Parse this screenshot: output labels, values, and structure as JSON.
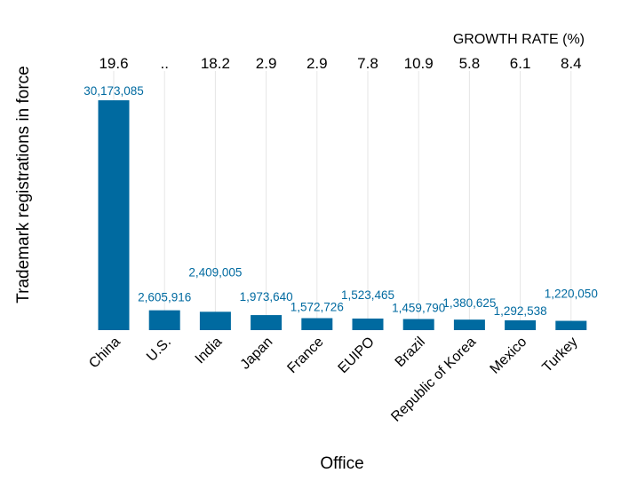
{
  "chart_data": {
    "type": "bar",
    "xlabel": "Office",
    "ylabel": "Trademark registrations in force",
    "growth_title": "GROWTH RATE (%)",
    "categories": [
      "China",
      "U.S.",
      "India",
      "Japan",
      "France",
      "EUIPO",
      "Brazil",
      "Republic of Korea",
      "Mexico",
      "Turkey"
    ],
    "values": [
      30173085,
      2605916,
      2409005,
      1973640,
      1572726,
      1523465,
      1459790,
      1380625,
      1292538,
      1220050
    ],
    "value_labels": [
      "30,173,085",
      "2,605,916",
      "2,409,005",
      "1,973,640",
      "1,572,726",
      "1,523,465",
      "1,459,790",
      "1,380,625",
      "1,292,538",
      "1,220,050"
    ],
    "growth_rates": [
      "19.6",
      "..",
      "18.2",
      "2.9",
      "2.9",
      "7.8",
      "10.9",
      "5.8",
      "6.1",
      "8.4"
    ],
    "ylim": [
      0,
      30173085
    ],
    "grid": "vertical",
    "bar_color": "#006aa0",
    "label_color": "#006aa0"
  }
}
